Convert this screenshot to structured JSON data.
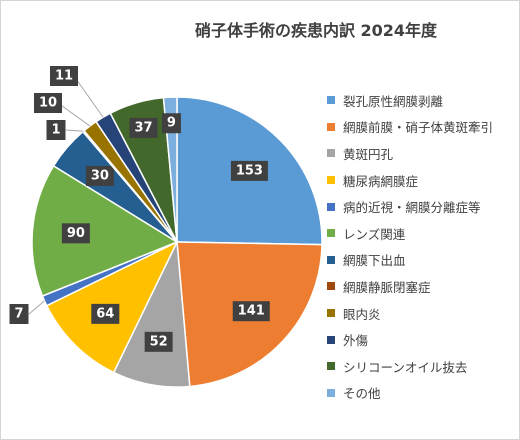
{
  "chart_data": {
    "type": "pie",
    "title": "硝子体手術の疾患内訳 2024年度",
    "categories": [
      "裂孔原性網膜剥離",
      "網膜前膜・硝子体黄斑牽引",
      "黄斑円孔",
      "糖尿病網膜症",
      "病的近視・網膜分離症等",
      "レンズ関連",
      "網膜下出血",
      "網膜静脈閉塞症",
      "眼内炎",
      "外傷",
      "シリコーンオイル抜去",
      "その他"
    ],
    "values": [
      153,
      141,
      52,
      64,
      7,
      90,
      30,
      1,
      10,
      11,
      37,
      9
    ],
    "colors": [
      "#5b9bd5",
      "#ed7d31",
      "#a5a5a5",
      "#ffc000",
      "#4472c4",
      "#70ad47",
      "#255e91",
      "#9e480e",
      "#997300",
      "#264478",
      "#43682b",
      "#7cafdd"
    ],
    "legend_position": "right",
    "data_labels": true
  }
}
